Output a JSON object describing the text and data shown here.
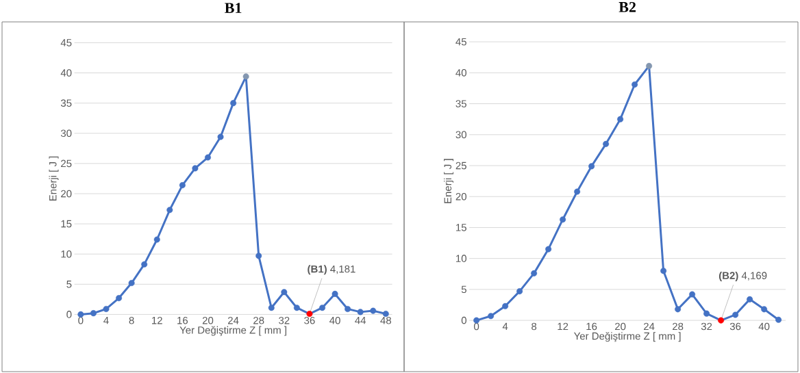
{
  "chart_data": [
    {
      "type": "line",
      "title": "B1",
      "xlabel": "Yer Değiştirme Z [ mm ]",
      "ylabel": "Enerji [ J ]",
      "x": [
        0,
        2,
        4,
        6,
        8,
        10,
        12,
        14,
        16,
        18,
        20,
        22,
        24,
        26,
        28,
        30,
        32,
        34,
        36,
        38,
        40,
        42,
        44,
        46,
        48
      ],
      "series": [
        {
          "color": "#4472c4",
          "values": [
            0,
            0.2,
            0.9,
            2.7,
            5.2,
            8.3,
            12.4,
            17.3,
            21.4,
            24.2,
            26.0,
            29.4,
            35.0,
            39.4,
            9.7,
            1.1,
            3.7,
            1.1,
            0.1,
            1.1,
            3.4,
            0.9,
            0.4,
            0.6,
            0.1
          ],
          "colors": [
            "#4472c4",
            "#4472c4",
            "#4472c4",
            "#4472c4",
            "#4472c4",
            "#4472c4",
            "#4472c4",
            "#4472c4",
            "#4472c4",
            "#4472c4",
            "#4472c4",
            "#4472c4",
            "#4472c4",
            "#8497b0",
            "#4472c4",
            "#4472c4",
            "#4472c4",
            "#4472c4",
            "#ff0000",
            "#4472c4",
            "#4472c4",
            "#4472c4",
            "#4472c4",
            "#4472c4",
            "#4472c4"
          ]
        }
      ],
      "xlim": [
        -1,
        49
      ],
      "ylim": [
        0,
        45
      ],
      "xticks": [
        0,
        4,
        8,
        12,
        16,
        20,
        24,
        28,
        32,
        36,
        40,
        44,
        48
      ],
      "yticks": [
        0,
        5,
        10,
        15,
        20,
        25,
        30,
        35,
        40,
        45
      ],
      "grid": "y",
      "marker": "circle",
      "annotations": [
        {
          "text": "**(B1)** 4,181",
          "x": 36,
          "y": 0.1
        }
      ]
    },
    {
      "type": "line",
      "title": "B2",
      "xlabel": "Yer Değiştirme Z [ mm ]",
      "ylabel": "Enerji [ J ]",
      "x": [
        0,
        2,
        4,
        6,
        8,
        10,
        12,
        14,
        16,
        18,
        20,
        22,
        24,
        26,
        28,
        30,
        32,
        34,
        36,
        38,
        40,
        42
      ],
      "series": [
        {
          "color": "#4472c4",
          "values": [
            0,
            0.7,
            2.3,
            4.7,
            7.6,
            11.5,
            16.3,
            20.8,
            24.9,
            28.5,
            32.5,
            38.1,
            41.1,
            8.0,
            1.8,
            4.2,
            1.1,
            0,
            0.9,
            3.4,
            1.8,
            0.1
          ],
          "colors": [
            "#4472c4",
            "#4472c4",
            "#4472c4",
            "#4472c4",
            "#4472c4",
            "#4472c4",
            "#4472c4",
            "#4472c4",
            "#4472c4",
            "#4472c4",
            "#4472c4",
            "#4472c4",
            "#8497b0",
            "#4472c4",
            "#4472c4",
            "#4472c4",
            "#4472c4",
            "#ff0000",
            "#4472c4",
            "#4472c4",
            "#4472c4",
            "#4472c4"
          ]
        }
      ],
      "xlim": [
        -1,
        43
      ],
      "ylim": [
        0,
        45
      ],
      "xticks": [
        0,
        4,
        8,
        12,
        16,
        20,
        24,
        28,
        32,
        36,
        40
      ],
      "yticks": [
        0,
        5,
        10,
        15,
        20,
        25,
        30,
        35,
        40,
        45
      ],
      "grid": "y",
      "marker": "circle",
      "annotations": [
        {
          "text": "**(B2)** 4,169",
          "x": 34,
          "y": 0
        }
      ]
    }
  ]
}
